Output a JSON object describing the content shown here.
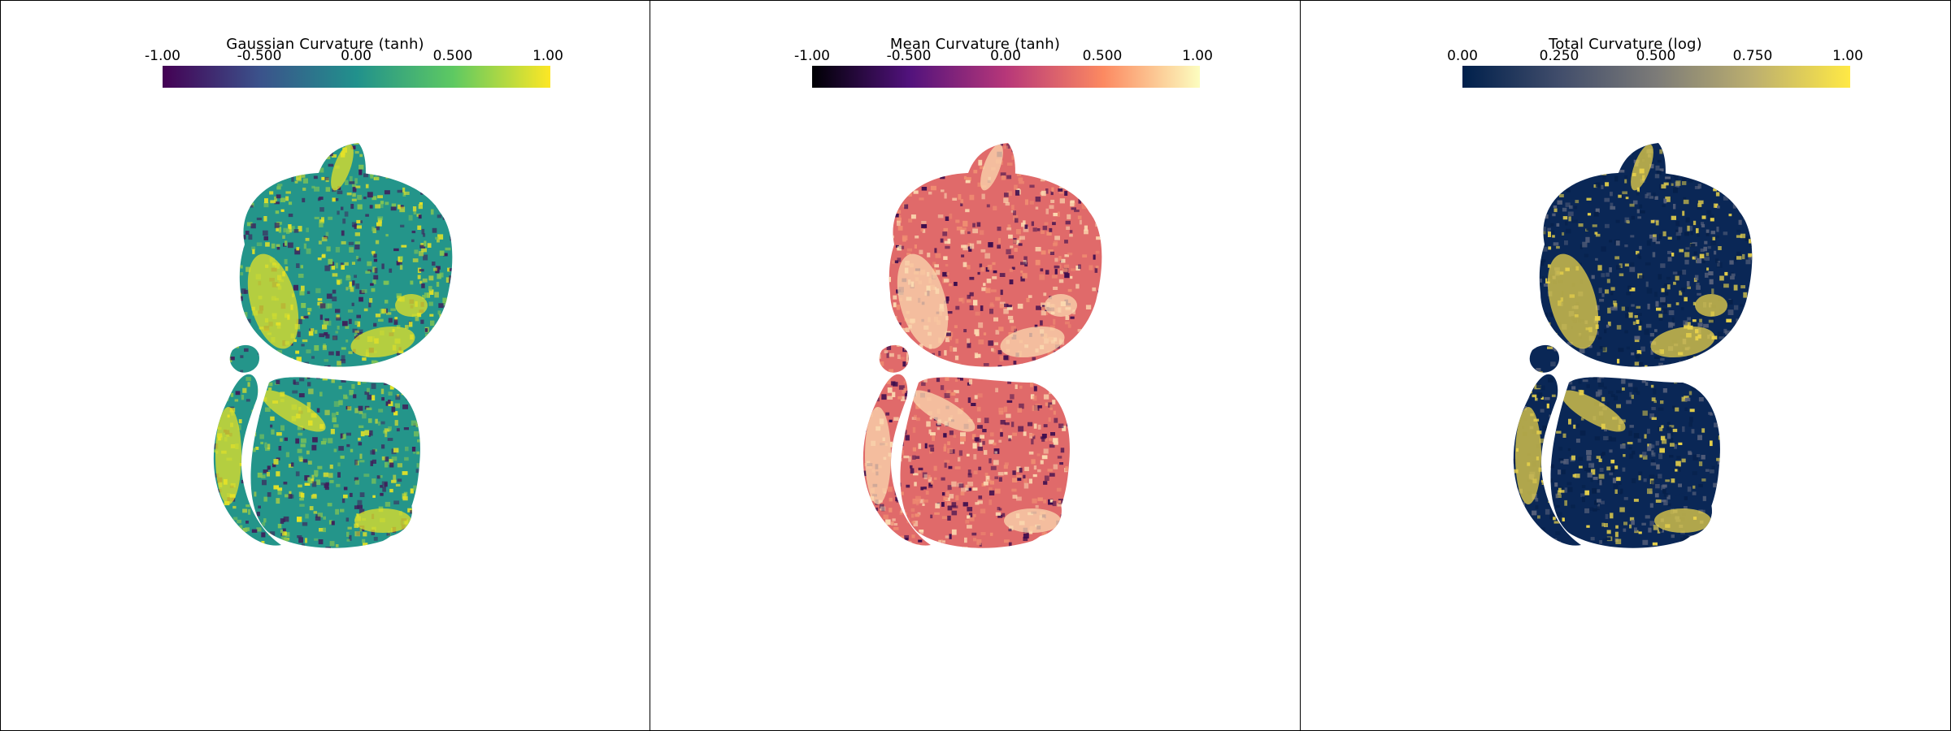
{
  "panels": [
    {
      "title": "Gaussian Curvature (tanh)",
      "ticks": [
        "-1.00",
        "-0.500",
        "0.00",
        "0.500",
        "1.00"
      ],
      "colormap": [
        "#440154",
        "#3b528b",
        "#21918c",
        "#5ec962",
        "#fde725"
      ],
      "base_color": "#24958a",
      "high_color": "#e4e227",
      "low_color": "#3f1f5a",
      "mid_color": "#7fc355"
    },
    {
      "title": "Mean Curvature (tanh)",
      "ticks": [
        "-1.00",
        "-0.500",
        "0.00",
        "0.500",
        "1.00"
      ],
      "colormap": [
        "#000004",
        "#51127c",
        "#b73779",
        "#fc8961",
        "#fcfdbf"
      ],
      "base_color": "#e06a6a",
      "high_color": "#fbd9b0",
      "low_color": "#3a0c4e",
      "mid_color": "#f08e72"
    },
    {
      "title": "Total Curvature (log)",
      "ticks": [
        "0.00",
        "0.250",
        "0.500",
        "0.750",
        "1.00"
      ],
      "colormap": [
        "#00204c",
        "#414d6b",
        "#7c7b78",
        "#bcaf6f",
        "#ffe945"
      ],
      "base_color": "#0a2756",
      "high_color": "#e8d24a",
      "low_color": "#06204a",
      "mid_color": "#56607a"
    }
  ]
}
